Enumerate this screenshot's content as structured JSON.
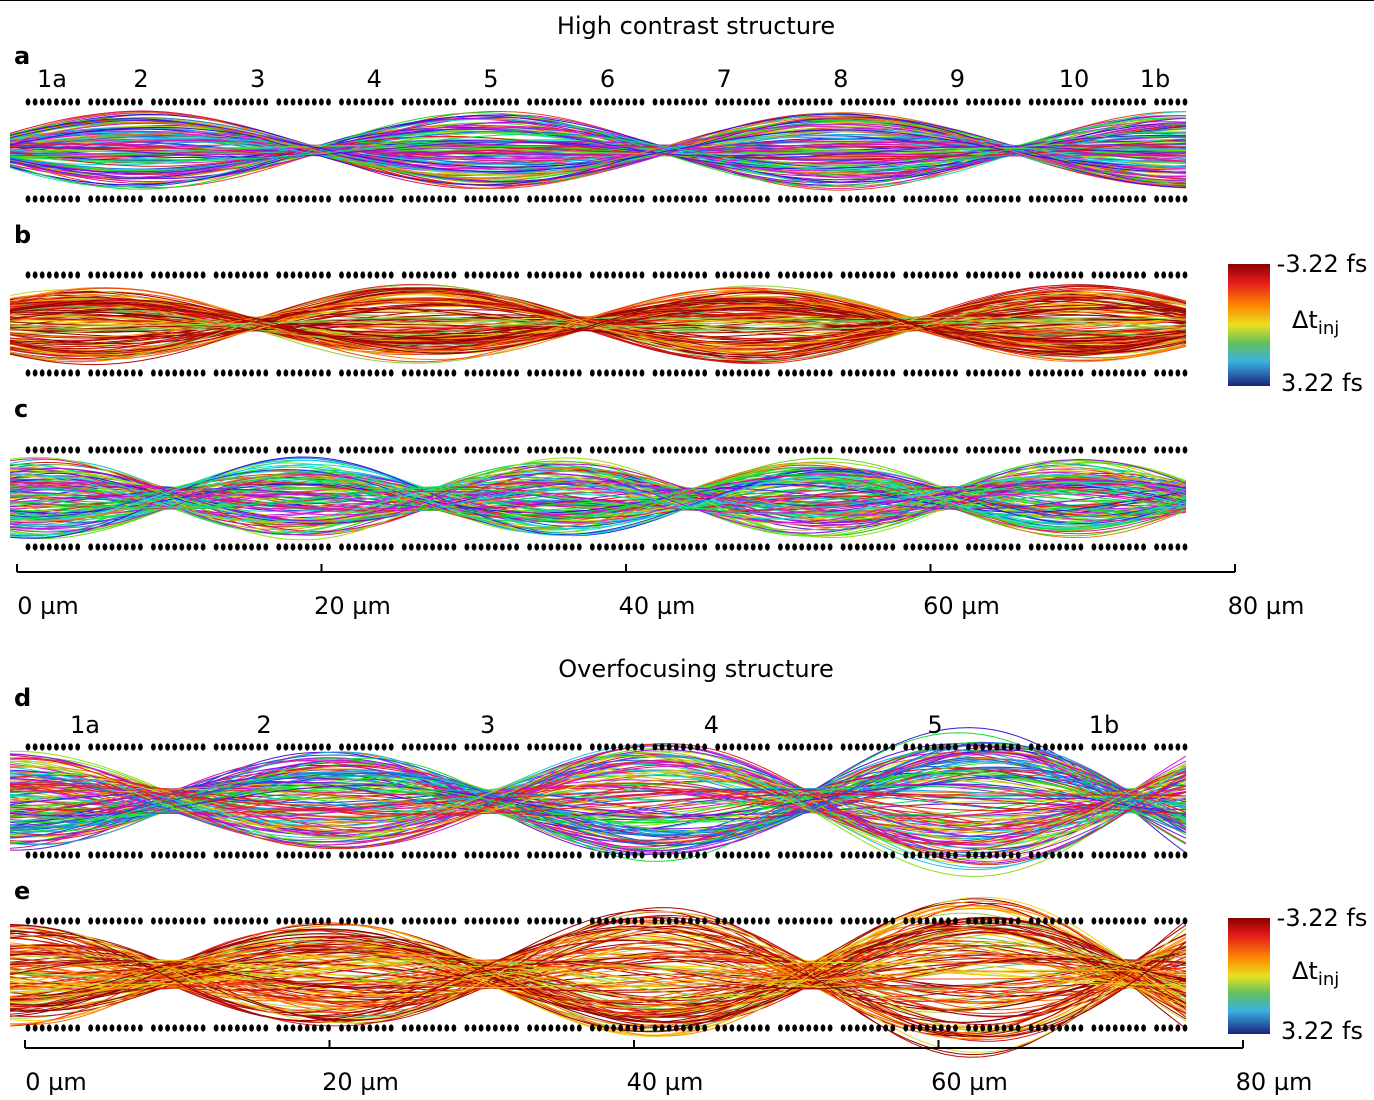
{
  "sections": [
    {
      "title": "High contrast structure",
      "panels": [
        {
          "label": "a",
          "cells": [
            "1a",
            "2",
            "3",
            "4",
            "5",
            "6",
            "7",
            "8",
            "9",
            "10",
            "1b"
          ]
        },
        {
          "label": "b",
          "colorbar": {
            "title": "Δt",
            "title_sub": "inj",
            "ticks": [
              {
                "value": -3.22,
                "label": "-3.22 fs"
              },
              {
                "value": 3.22,
                "label": "3.22 fs"
              }
            ]
          }
        },
        {
          "label": "c"
        }
      ],
      "axis": {
        "xlim": [
          0,
          80
        ],
        "xticks": [
          {
            "value": 0,
            "label": "0 µm"
          },
          {
            "value": 20,
            "label": "20 µm"
          },
          {
            "value": 40,
            "label": "40 µm"
          },
          {
            "value": 60,
            "label": "60 µm"
          },
          {
            "value": 80,
            "label": "80 µm"
          }
        ]
      }
    },
    {
      "title": "Overfocusing structure",
      "panels": [
        {
          "label": "d",
          "cells": [
            "1a",
            "2",
            "3",
            "4",
            "5",
            "1b"
          ]
        },
        {
          "label": "e",
          "colorbar": {
            "title": "Δt",
            "title_sub": "inj",
            "ticks": [
              {
                "value": -3.22,
                "label": "-3.22 fs"
              },
              {
                "value": 3.22,
                "label": "3.22 fs"
              }
            ]
          }
        }
      ],
      "axis": {
        "xlim": [
          0,
          80
        ],
        "xticks": [
          {
            "value": 0,
            "label": "0 µm"
          },
          {
            "value": 20,
            "label": "20 µm"
          },
          {
            "value": 40,
            "label": "40 µm"
          },
          {
            "value": 60,
            "label": "60 µm"
          },
          {
            "value": 80,
            "label": "80 µm"
          }
        ]
      }
    }
  ]
}
